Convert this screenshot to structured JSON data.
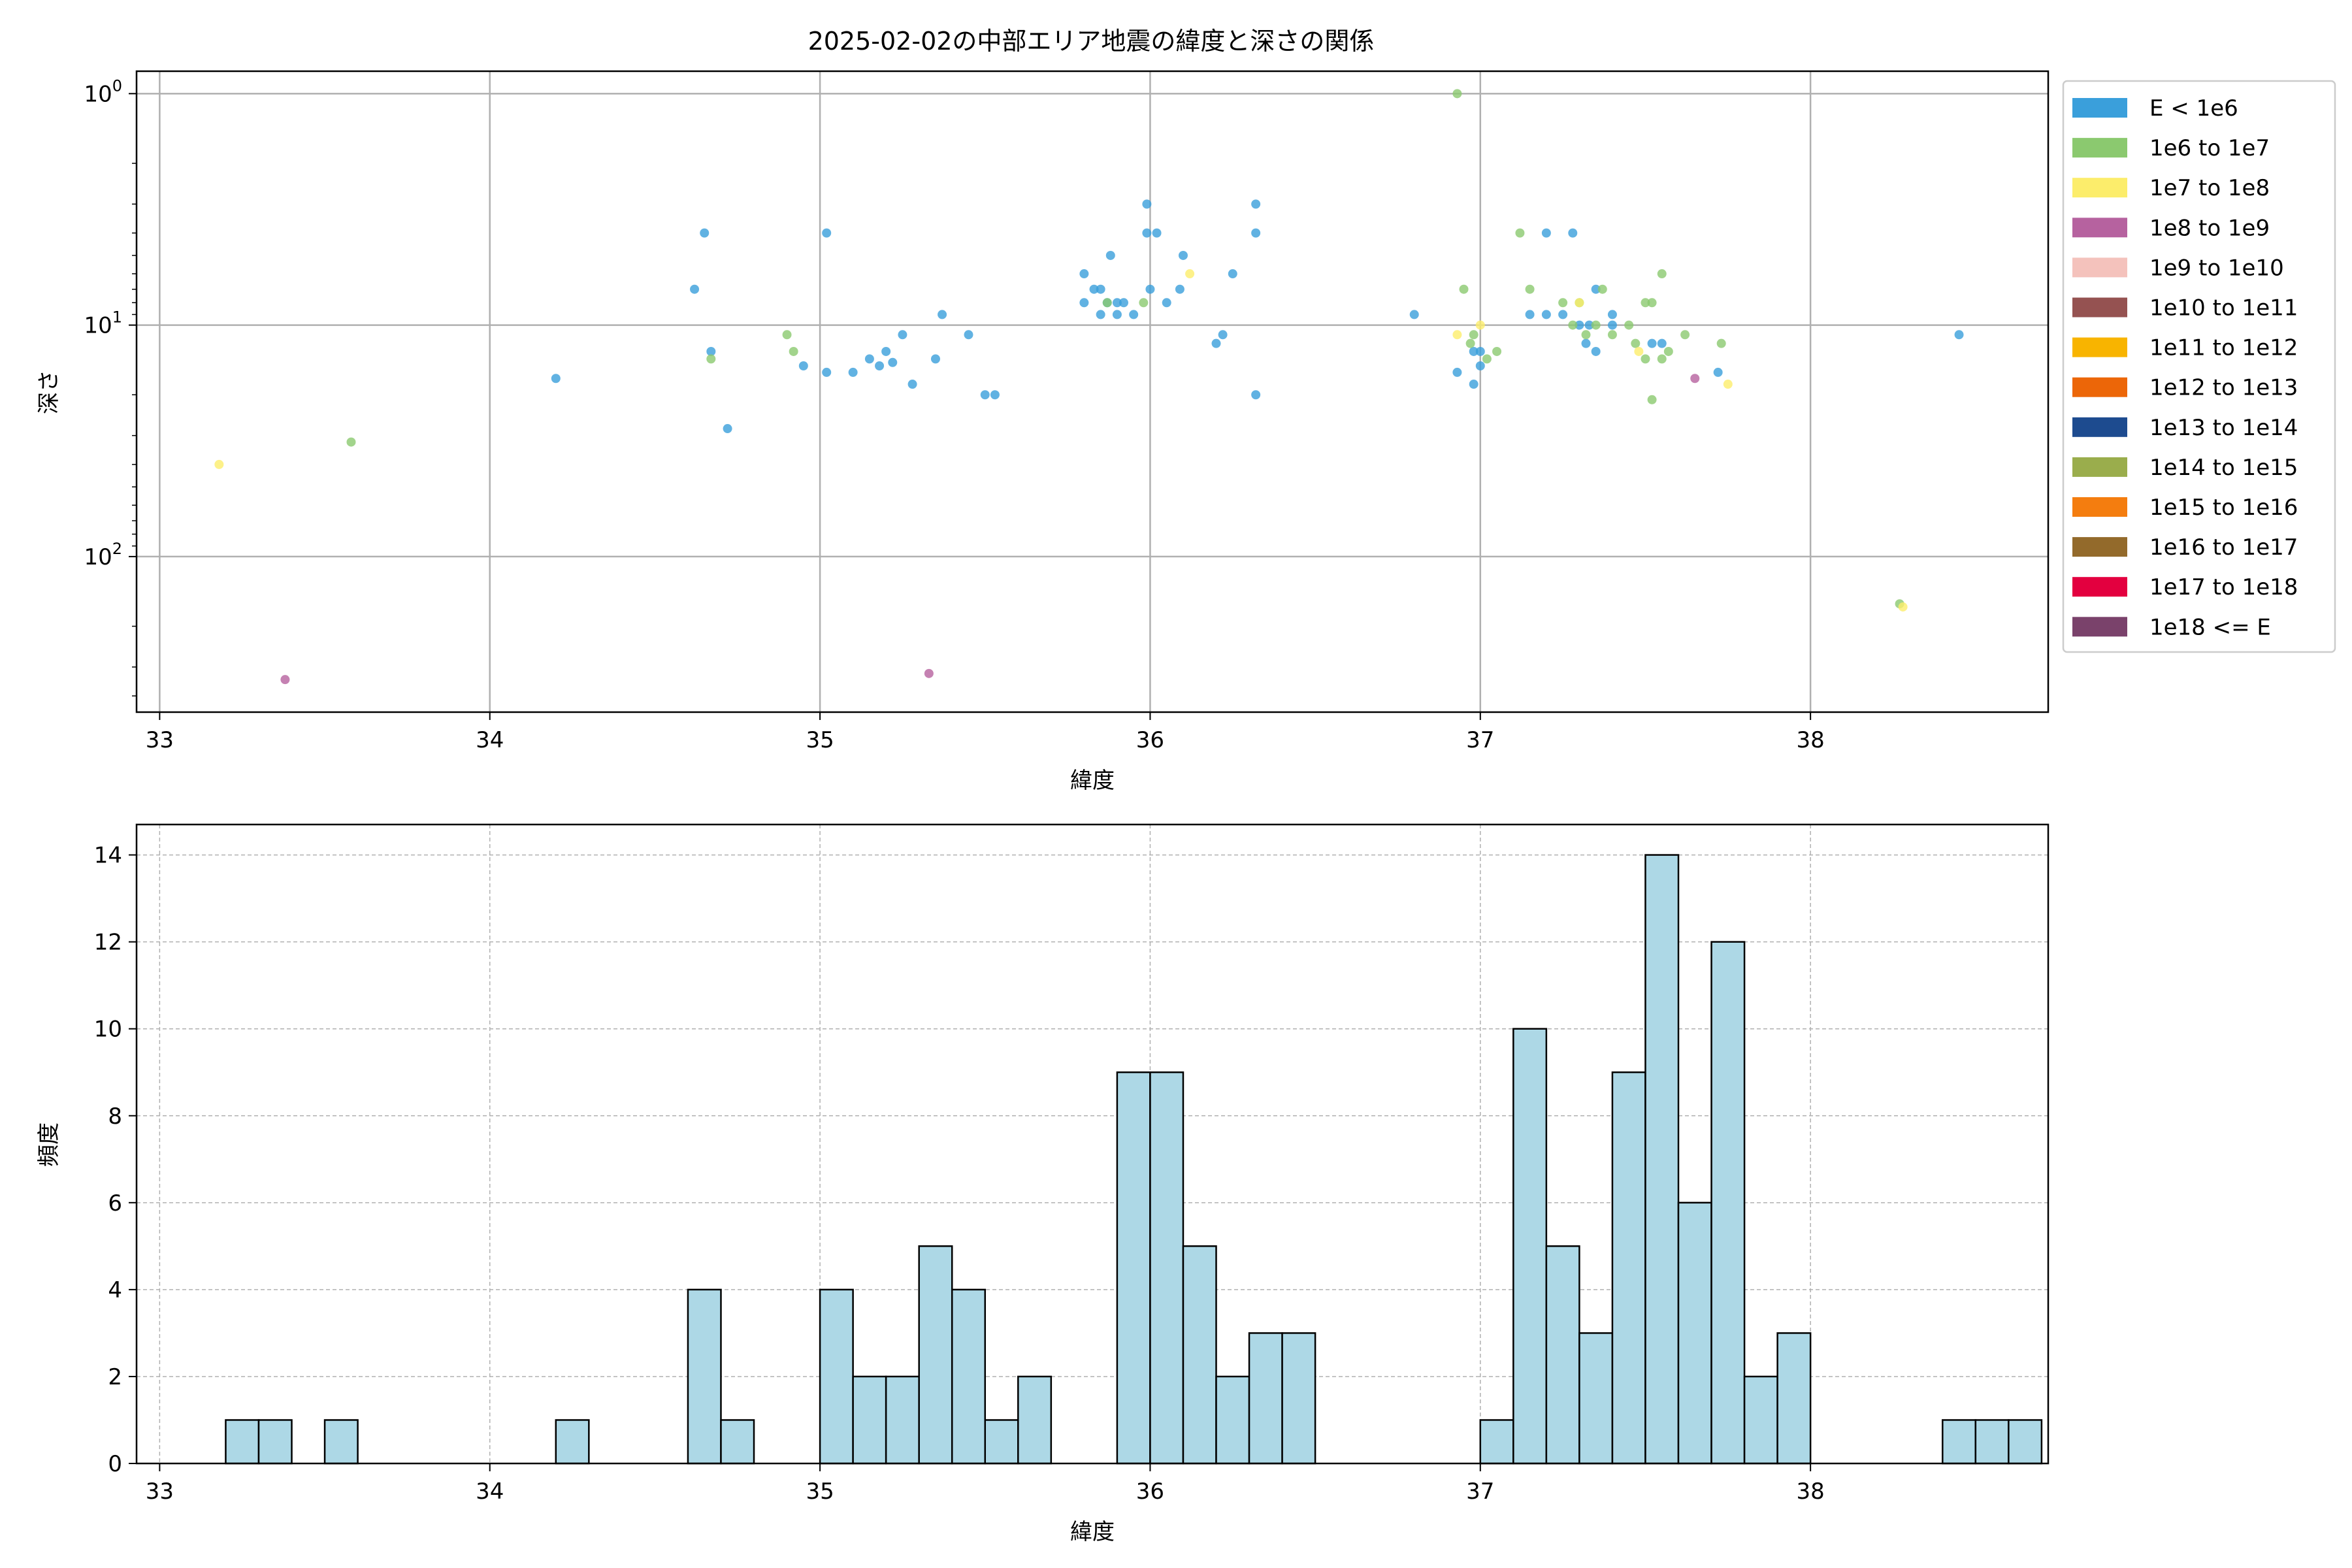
{
  "title": "2025-02-02の中部エリア地震の緯度と深さの関係",
  "colors": {
    "hist_fill": "#add8e6",
    "hist_edge": "#000000",
    "grid": "#b0b0b0"
  },
  "chart_data": [
    {
      "type": "scatter",
      "title": "2025-02-02の中部エリア地震の緯度と深さの関係",
      "xlabel": "緯度",
      "ylabel": "深さ",
      "xlim": [
        32.93,
        38.72
      ],
      "ylim": [
        470,
        0.8
      ],
      "yscale": "log",
      "y_inverted": true,
      "grid": true,
      "legend_position": "outside-right",
      "x_ticks": [
        {
          "value": 33,
          "label": "33"
        },
        {
          "value": 34,
          "label": "34"
        },
        {
          "value": 35,
          "label": "35"
        },
        {
          "value": 36,
          "label": "36"
        },
        {
          "value": 37,
          "label": "37"
        },
        {
          "value": 38,
          "label": "38"
        }
      ],
      "y_ticks": [
        {
          "value": 1,
          "base": "10",
          "exp": "0"
        },
        {
          "value": 10,
          "base": "10",
          "exp": "1"
        },
        {
          "value": 100,
          "base": "10",
          "exp": "2"
        }
      ],
      "legend": [
        {
          "label": "E < 1e6",
          "color": "#3a9fdb"
        },
        {
          "label": "1e6 to 1e7",
          "color": "#8bc96f"
        },
        {
          "label": "1e7 to 1e8",
          "color": "#fced6b"
        },
        {
          "label": "1e8 to 1e9",
          "color": "#b6629f"
        },
        {
          "label": "1e9 to 1e10",
          "color": "#f4c2bc"
        },
        {
          "label": "1e10 to 1e11",
          "color": "#955251"
        },
        {
          "label": "1e11 to 1e12",
          "color": "#f8b400"
        },
        {
          "label": "1e12 to 1e13",
          "color": "#ec6608"
        },
        {
          "label": "1e13 to 1e14",
          "color": "#1d4b8f"
        },
        {
          "label": "1e14 to 1e15",
          "color": "#9aad4c"
        },
        {
          "label": "1e15 to 1e16",
          "color": "#f47d0f"
        },
        {
          "label": "1e16 to 1e17",
          "color": "#936a2b"
        },
        {
          "label": "1e17 to 1e18",
          "color": "#e3003f"
        },
        {
          "label": "1e18 <= E",
          "color": "#7a426b"
        }
      ],
      "series": [
        {
          "name": "E < 1e6",
          "color": "#3a9fdb",
          "points": [
            [
              34.2,
              17
            ],
            [
              34.62,
              7
            ],
            [
              34.65,
              4
            ],
            [
              34.67,
              13
            ],
            [
              34.72,
              28
            ],
            [
              34.95,
              15
            ],
            [
              35.02,
              4
            ],
            [
              35.02,
              16
            ],
            [
              35.1,
              16
            ],
            [
              35.15,
              14
            ],
            [
              35.18,
              15
            ],
            [
              35.2,
              13
            ],
            [
              35.22,
              14.5
            ],
            [
              35.25,
              11
            ],
            [
              35.28,
              18
            ],
            [
              35.35,
              14
            ],
            [
              35.37,
              9
            ],
            [
              35.45,
              11
            ],
            [
              35.5,
              20
            ],
            [
              35.53,
              20
            ],
            [
              35.8,
              8
            ],
            [
              35.8,
              6
            ],
            [
              35.83,
              7
            ],
            [
              35.85,
              9
            ],
            [
              35.85,
              7
            ],
            [
              35.87,
              8
            ],
            [
              35.88,
              5
            ],
            [
              35.9,
              8
            ],
            [
              35.9,
              9
            ],
            [
              35.92,
              8
            ],
            [
              35.95,
              9
            ],
            [
              35.99,
              4
            ],
            [
              35.99,
              3
            ],
            [
              36.02,
              4
            ],
            [
              36.0,
              7
            ],
            [
              36.05,
              8
            ],
            [
              36.1,
              5
            ],
            [
              36.09,
              7
            ],
            [
              36.2,
              12
            ],
            [
              36.22,
              11
            ],
            [
              36.25,
              6
            ],
            [
              36.32,
              3
            ],
            [
              36.32,
              4
            ],
            [
              36.32,
              20
            ],
            [
              36.8,
              9
            ],
            [
              36.93,
              16
            ],
            [
              36.98,
              13
            ],
            [
              36.98,
              18
            ],
            [
              37.0,
              13
            ],
            [
              37.0,
              15
            ],
            [
              37.15,
              9
            ],
            [
              37.2,
              9
            ],
            [
              37.2,
              4
            ],
            [
              37.25,
              9
            ],
            [
              37.28,
              4
            ],
            [
              37.3,
              10
            ],
            [
              37.32,
              12
            ],
            [
              37.33,
              10
            ],
            [
              37.35,
              13
            ],
            [
              37.35,
              7
            ],
            [
              37.4,
              9
            ],
            [
              37.4,
              10
            ],
            [
              37.52,
              12
            ],
            [
              37.55,
              12
            ],
            [
              37.72,
              16
            ],
            [
              38.45,
              11
            ]
          ]
        },
        {
          "name": "1e6 to 1e7",
          "color": "#8bc96f",
          "points": [
            [
              33.58,
              32
            ],
            [
              34.67,
              14
            ],
            [
              34.9,
              11
            ],
            [
              34.92,
              13
            ],
            [
              35.87,
              8
            ],
            [
              35.98,
              8
            ],
            [
              36.93,
              1
            ],
            [
              36.95,
              7
            ],
            [
              36.97,
              12
            ],
            [
              36.98,
              11
            ],
            [
              37.02,
              14
            ],
            [
              37.05,
              13
            ],
            [
              37.12,
              4
            ],
            [
              37.15,
              7
            ],
            [
              37.25,
              8
            ],
            [
              37.28,
              10
            ],
            [
              37.3,
              8
            ],
            [
              37.32,
              11
            ],
            [
              37.35,
              10
            ],
            [
              37.37,
              7
            ],
            [
              37.4,
              11
            ],
            [
              37.45,
              10
            ],
            [
              37.47,
              12
            ],
            [
              37.5,
              8
            ],
            [
              37.5,
              14
            ],
            [
              37.52,
              8
            ],
            [
              37.52,
              21
            ],
            [
              37.55,
              14
            ],
            [
              37.55,
              6
            ],
            [
              37.57,
              13
            ],
            [
              37.62,
              11
            ],
            [
              37.73,
              12
            ],
            [
              38.27,
              160
            ]
          ]
        },
        {
          "name": "1e7 to 1e8",
          "color": "#fced6b",
          "points": [
            [
              33.18,
              40
            ],
            [
              36.12,
              6
            ],
            [
              36.93,
              11
            ],
            [
              37.0,
              10
            ],
            [
              37.3,
              8
            ],
            [
              37.48,
              13
            ],
            [
              37.75,
              18
            ],
            [
              38.28,
              165
            ]
          ]
        },
        {
          "name": "1e8 to 1e9",
          "color": "#b6629f",
          "points": [
            [
              33.38,
              340
            ],
            [
              35.33,
              320
            ],
            [
              37.65,
              17
            ]
          ]
        }
      ]
    },
    {
      "type": "bar",
      "xlabel": "緯度",
      "ylabel": "頻度",
      "xlim": [
        32.93,
        38.72
      ],
      "ylim": [
        0,
        14.7
      ],
      "grid": true,
      "x_ticks": [
        "33",
        "34",
        "35",
        "36",
        "37",
        "38"
      ],
      "y_ticks": [
        "0",
        "2",
        "4",
        "6",
        "8",
        "10",
        "12",
        "14"
      ],
      "bin_width": 0.1,
      "bin_start": 33.2,
      "values": [
        1,
        1,
        0,
        1,
        0,
        0,
        0,
        0,
        0,
        0,
        1,
        0,
        0,
        0,
        4,
        1,
        0,
        0,
        4,
        2,
        2,
        5,
        4,
        1,
        2,
        0,
        0,
        9,
        9,
        5,
        2,
        3,
        3,
        0,
        0,
        0,
        0,
        0,
        1,
        10,
        5,
        3,
        9,
        14,
        6,
        12,
        2,
        3,
        0,
        0,
        0,
        0,
        1,
        1,
        1
      ]
    }
  ]
}
